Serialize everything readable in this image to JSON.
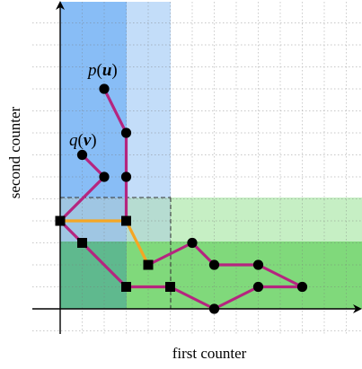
{
  "axes": {
    "x_label": "first counter",
    "y_label": "second counter"
  },
  "labels": {
    "p_func": "p",
    "p_var": "u",
    "q_func": "q",
    "q_var": "v"
  },
  "colors": {
    "path": "#b5257f",
    "connector": "#f5a623",
    "blue_dark": "#88bdf6",
    "blue_light": "#c3ddf9",
    "green_dark": "#80d97b",
    "green_light": "#c6efc4",
    "overlap_dark": "#5fb98e",
    "overlap_mid": "#9fc6e3",
    "overlap_light": "#b6dcd1"
  },
  "diagram": {
    "square_nodes": [
      [
        0,
        4
      ],
      [
        1,
        3
      ],
      [
        3,
        4
      ],
      [
        4,
        2
      ],
      [
        3,
        1
      ],
      [
        5,
        1
      ]
    ],
    "circle_nodes": [
      [
        2,
        10
      ],
      [
        3,
        8
      ],
      [
        3,
        6
      ],
      [
        1,
        7
      ],
      [
        2,
        6
      ],
      [
        6,
        3
      ],
      [
        7,
        2
      ],
      [
        9,
        2
      ],
      [
        9,
        1
      ],
      [
        11,
        1
      ],
      [
        7,
        0
      ]
    ],
    "magenta_paths": [
      [
        [
          2,
          10
        ],
        [
          3,
          8
        ],
        [
          3,
          6
        ],
        [
          3,
          4
        ]
      ],
      [
        [
          1,
          7
        ],
        [
          2,
          6
        ],
        [
          0,
          4
        ]
      ],
      [
        [
          0,
          4
        ],
        [
          1,
          3
        ],
        [
          3,
          1
        ],
        [
          5,
          1
        ],
        [
          7,
          0
        ],
        [
          9,
          1
        ],
        [
          11,
          1
        ],
        [
          9,
          2
        ],
        [
          7,
          2
        ],
        [
          6,
          3
        ],
        [
          4,
          2
        ]
      ]
    ],
    "orange_paths": [
      [
        [
          0,
          4
        ],
        [
          3,
          4
        ],
        [
          4,
          2
        ]
      ],
      [
        [
          3,
          1
        ],
        [
          5,
          1
        ]
      ]
    ]
  }
}
